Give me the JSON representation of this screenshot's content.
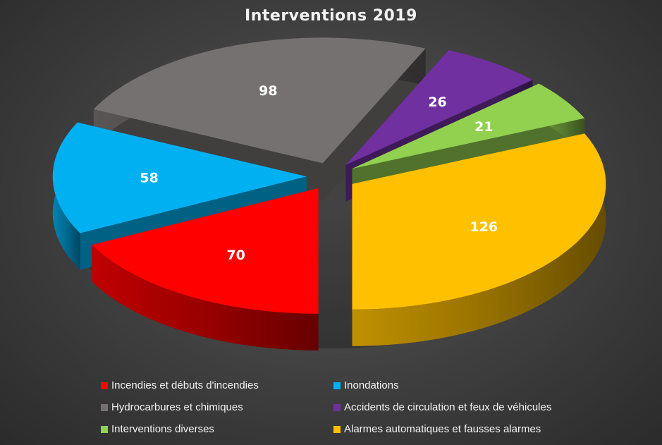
{
  "chart_data": {
    "type": "pie",
    "title": "Interventions 2019",
    "three_d": true,
    "exploded": true,
    "legend_position": "bottom",
    "slices": [
      {
        "label": "Incendies et débuts d'incendies",
        "value": 70,
        "color": "#ff0000"
      },
      {
        "label": "Inondations",
        "value": 58,
        "color": "#00b0f0"
      },
      {
        "label": "Hydrocarbures et chimiques",
        "value": 98,
        "color": "#767171"
      },
      {
        "label": "Accidents de circulation et feux de véhicules",
        "value": 26,
        "color": "#7030a0"
      },
      {
        "label": "Interventions diverses",
        "value": 21,
        "color": "#92d050"
      },
      {
        "label": "Alarmes automatiques et fausses alarmes",
        "value": 126,
        "color": "#ffc000"
      }
    ],
    "legend_order": [
      0,
      1,
      2,
      3,
      4,
      5
    ]
  }
}
